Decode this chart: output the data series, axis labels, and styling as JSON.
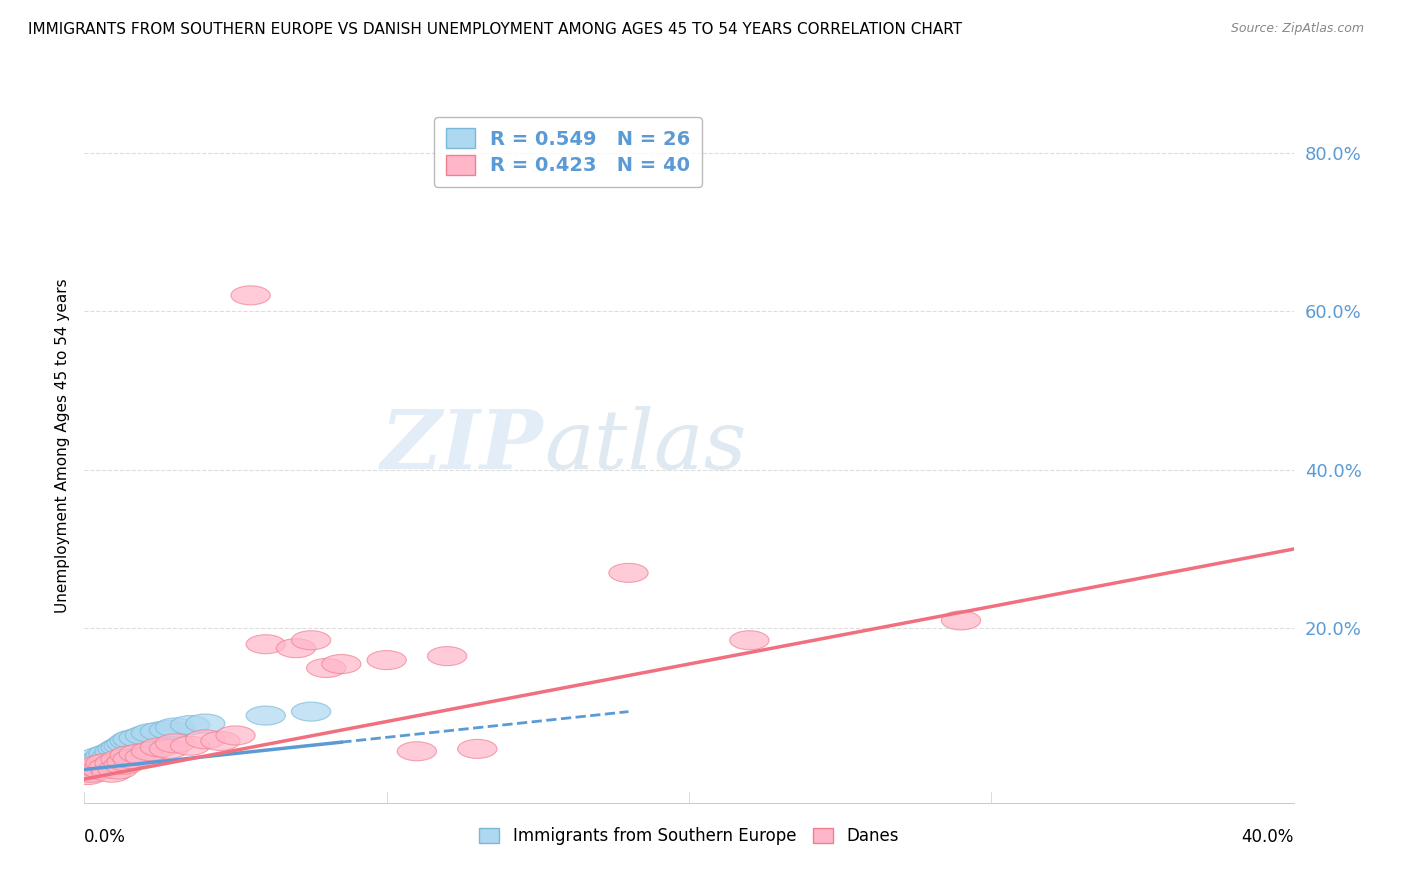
{
  "title": "IMMIGRANTS FROM SOUTHERN EUROPE VS DANISH UNEMPLOYMENT AMONG AGES 45 TO 54 YEARS CORRELATION CHART",
  "source": "Source: ZipAtlas.com",
  "ylabel": "Unemployment Among Ages 45 to 54 years",
  "ytick_values": [
    0.2,
    0.4,
    0.6,
    0.8
  ],
  "xlim": [
    0.0,
    0.4
  ],
  "ylim": [
    -0.02,
    0.88
  ],
  "watermark_zip": "ZIP",
  "watermark_atlas": "atlas",
  "legend_blue_r": "R = 0.549",
  "legend_blue_n": "N = 26",
  "legend_pink_r": "R = 0.423",
  "legend_pink_n": "N = 40",
  "blue_color": "#ADD8F0",
  "pink_color": "#FFB6C8",
  "blue_edge_color": "#7BB8D8",
  "pink_edge_color": "#F08090",
  "blue_line_color": "#5B9BD5",
  "pink_line_color": "#F07080",
  "grid_color": "#DDDDDD",
  "blue_scatter": [
    [
      0.0,
      0.03
    ],
    [
      0.002,
      0.025
    ],
    [
      0.003,
      0.028
    ],
    [
      0.004,
      0.032
    ],
    [
      0.005,
      0.038
    ],
    [
      0.006,
      0.035
    ],
    [
      0.007,
      0.04
    ],
    [
      0.008,
      0.042
    ],
    [
      0.009,
      0.038
    ],
    [
      0.01,
      0.045
    ],
    [
      0.011,
      0.048
    ],
    [
      0.012,
      0.05
    ],
    [
      0.013,
      0.052
    ],
    [
      0.014,
      0.055
    ],
    [
      0.015,
      0.058
    ],
    [
      0.016,
      0.06
    ],
    [
      0.018,
      0.062
    ],
    [
      0.02,
      0.065
    ],
    [
      0.022,
      0.068
    ],
    [
      0.025,
      0.07
    ],
    [
      0.028,
      0.072
    ],
    [
      0.03,
      0.075
    ],
    [
      0.035,
      0.078
    ],
    [
      0.04,
      0.08
    ],
    [
      0.06,
      0.09
    ],
    [
      0.075,
      0.095
    ]
  ],
  "pink_scatter": [
    [
      0.0,
      0.02
    ],
    [
      0.001,
      0.015
    ],
    [
      0.002,
      0.018
    ],
    [
      0.003,
      0.022
    ],
    [
      0.004,
      0.025
    ],
    [
      0.005,
      0.028
    ],
    [
      0.006,
      0.022
    ],
    [
      0.007,
      0.03
    ],
    [
      0.008,
      0.025
    ],
    [
      0.009,
      0.018
    ],
    [
      0.01,
      0.03
    ],
    [
      0.011,
      0.022
    ],
    [
      0.012,
      0.035
    ],
    [
      0.013,
      0.028
    ],
    [
      0.014,
      0.032
    ],
    [
      0.015,
      0.04
    ],
    [
      0.016,
      0.035
    ],
    [
      0.018,
      0.042
    ],
    [
      0.02,
      0.038
    ],
    [
      0.022,
      0.045
    ],
    [
      0.025,
      0.05
    ],
    [
      0.028,
      0.048
    ],
    [
      0.03,
      0.055
    ],
    [
      0.035,
      0.052
    ],
    [
      0.04,
      0.06
    ],
    [
      0.045,
      0.058
    ],
    [
      0.05,
      0.065
    ],
    [
      0.055,
      0.62
    ],
    [
      0.06,
      0.18
    ],
    [
      0.07,
      0.175
    ],
    [
      0.075,
      0.185
    ],
    [
      0.08,
      0.15
    ],
    [
      0.085,
      0.155
    ],
    [
      0.1,
      0.16
    ],
    [
      0.11,
      0.045
    ],
    [
      0.12,
      0.165
    ],
    [
      0.13,
      0.048
    ],
    [
      0.18,
      0.27
    ],
    [
      0.22,
      0.185
    ],
    [
      0.29,
      0.21
    ]
  ],
  "blue_line_x": [
    0.0,
    0.18
  ],
  "blue_line_y": [
    0.022,
    0.095
  ],
  "pink_line_x": [
    0.0,
    0.4
  ],
  "pink_line_y": [
    0.01,
    0.3
  ]
}
